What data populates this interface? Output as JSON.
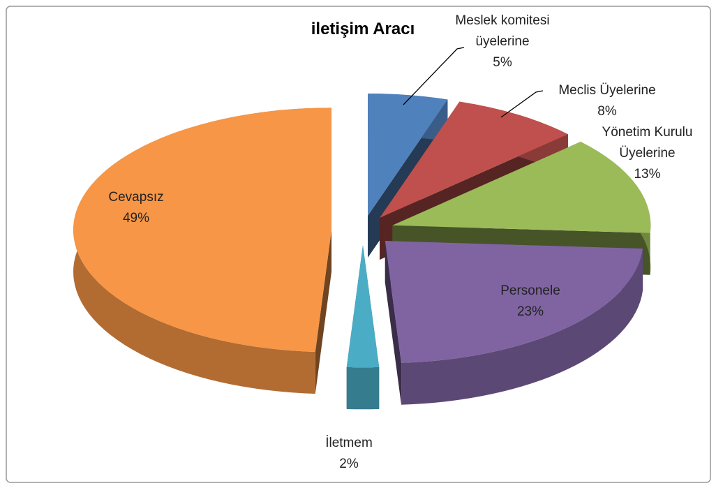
{
  "chart_data": {
    "type": "pie",
    "title": "iletişim Aracı",
    "categories": [
      "Meslek komitesi üyelerine",
      "Meclis Üyelerine",
      "Yönetim Kurulu Üyelerine",
      "Personele",
      "İletmem",
      "Cevapsız"
    ],
    "values": [
      5,
      8,
      13,
      23,
      2,
      49
    ],
    "value_labels": [
      "5%",
      "8%",
      "13%",
      "23%",
      "2%",
      "49%"
    ],
    "colors": [
      "#4f81bd",
      "#c0504d",
      "#9bbb59",
      "#8064a2",
      "#4bacc6",
      "#f79646"
    ]
  }
}
